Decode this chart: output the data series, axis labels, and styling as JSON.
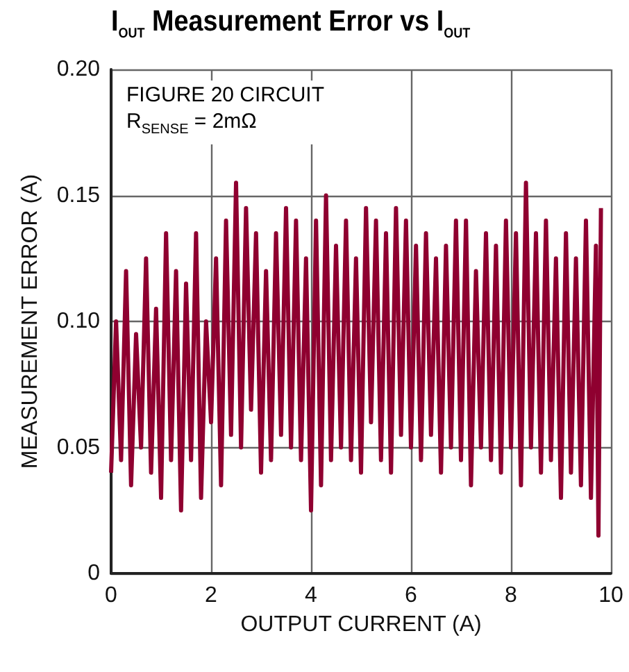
{
  "chart_data": {
    "type": "line",
    "title": "I$_{OUT}$ Measurement Error vs I$_{OUT}$",
    "xlabel": "OUTPUT CURRENT (A)",
    "ylabel": "MEASUREMENT ERROR (A)",
    "annotations": [
      "FIGURE 20 CIRCUIT",
      "R$_{SENSE}$ = 2mΩ"
    ],
    "x": [
      0,
      0.1,
      0.2,
      0.3,
      0.4,
      0.5,
      0.6,
      0.7,
      0.8,
      0.9,
      1.0,
      1.1,
      1.2,
      1.3,
      1.4,
      1.5,
      1.6,
      1.7,
      1.8,
      1.9,
      2.0,
      2.1,
      2.2,
      2.3,
      2.4,
      2.5,
      2.6,
      2.7,
      2.8,
      2.9,
      3.0,
      3.1,
      3.2,
      3.3,
      3.4,
      3.5,
      3.6,
      3.7,
      3.8,
      3.9,
      4.0,
      4.1,
      4.2,
      4.3,
      4.4,
      4.5,
      4.6,
      4.7,
      4.8,
      4.9,
      5.0,
      5.1,
      5.2,
      5.3,
      5.4,
      5.5,
      5.6,
      5.7,
      5.8,
      5.9,
      6.0,
      6.1,
      6.2,
      6.3,
      6.4,
      6.5,
      6.6,
      6.7,
      6.8,
      6.9,
      7.0,
      7.1,
      7.2,
      7.3,
      7.4,
      7.5,
      7.6,
      7.7,
      7.8,
      7.9,
      8.0,
      8.1,
      8.2,
      8.3,
      8.4,
      8.5,
      8.6,
      8.7,
      8.8,
      8.9,
      9.0,
      9.1,
      9.2,
      9.3,
      9.4,
      9.5,
      9.6,
      9.7,
      9.75,
      9.8
    ],
    "series": [
      {
        "color": "#8f0030",
        "values": [
          0.04,
          0.1,
          0.045,
          0.12,
          0.035,
          0.095,
          0.05,
          0.125,
          0.04,
          0.105,
          0.03,
          0.135,
          0.045,
          0.12,
          0.025,
          0.115,
          0.045,
          0.135,
          0.03,
          0.1,
          0.06,
          0.125,
          0.035,
          0.14,
          0.055,
          0.155,
          0.05,
          0.145,
          0.065,
          0.135,
          0.04,
          0.12,
          0.045,
          0.135,
          0.055,
          0.145,
          0.05,
          0.14,
          0.045,
          0.125,
          0.025,
          0.14,
          0.035,
          0.15,
          0.045,
          0.13,
          0.05,
          0.14,
          0.045,
          0.125,
          0.04,
          0.145,
          0.06,
          0.14,
          0.045,
          0.135,
          0.04,
          0.145,
          0.055,
          0.14,
          0.05,
          0.13,
          0.045,
          0.135,
          0.055,
          0.125,
          0.04,
          0.13,
          0.05,
          0.14,
          0.045,
          0.14,
          0.035,
          0.12,
          0.05,
          0.135,
          0.045,
          0.13,
          0.04,
          0.14,
          0.05,
          0.135,
          0.035,
          0.155,
          0.05,
          0.135,
          0.04,
          0.14,
          0.045,
          0.125,
          0.03,
          0.135,
          0.04,
          0.125,
          0.035,
          0.14,
          0.03,
          0.13,
          0.015,
          0.145
        ]
      }
    ],
    "xlim": [
      0,
      10
    ],
    "xticks": [
      0,
      2,
      4,
      6,
      8,
      10
    ],
    "ylim": [
      0,
      0.2
    ],
    "yticks": [
      0,
      0.05,
      {
        "value": 0.1,
        "label": "0.10"
      },
      0.15,
      {
        "value": 0.2,
        "label": "0.20"
      }
    ],
    "grid": true,
    "marker": "none",
    "line_style": "solid"
  }
}
